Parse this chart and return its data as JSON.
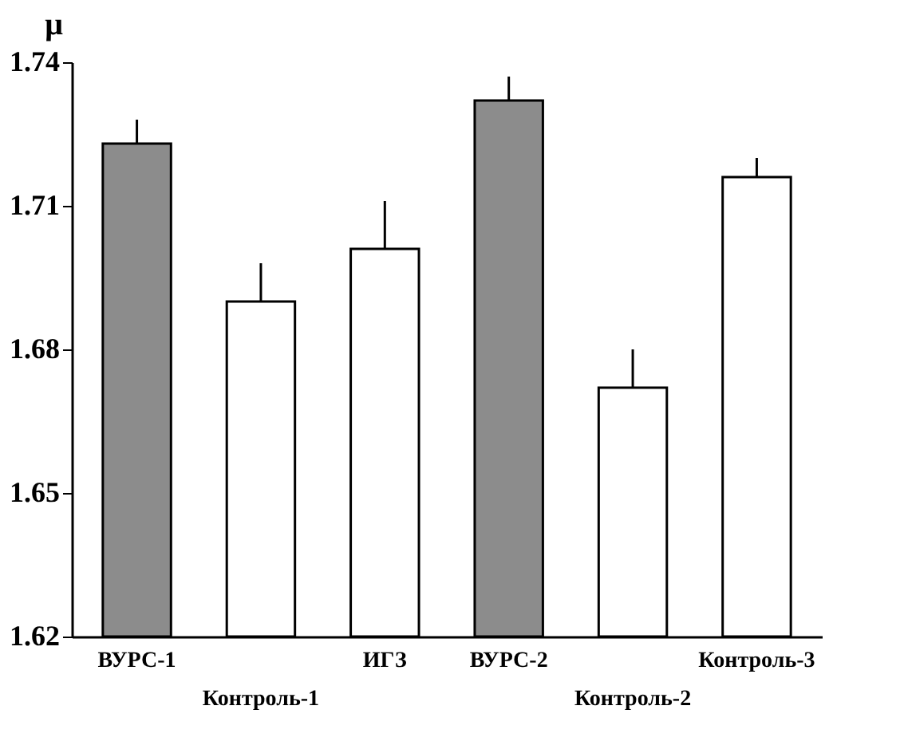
{
  "chart_data": {
    "type": "bar",
    "ylabel": "μ",
    "categories": [
      "ВУРС-1",
      "Контроль-1",
      "ИГЗ",
      "ВУРС-2",
      "Контроль-2",
      "Контроль-3"
    ],
    "values": [
      1.723,
      1.69,
      1.701,
      1.732,
      1.672,
      1.716
    ],
    "colors": [
      "#8c8c8c",
      "#ffffff",
      "#ffffff",
      "#8c8c8c",
      "#ffffff",
      "#ffffff"
    ],
    "errors": [
      [
        1.723,
        1.728
      ],
      [
        1.69,
        1.698
      ],
      [
        1.701,
        1.711
      ],
      [
        1.732,
        1.737
      ],
      [
        1.672,
        1.68
      ],
      [
        1.716,
        1.72
      ]
    ],
    "ylim": [
      1.62,
      1.74
    ],
    "yticks": [
      1.62,
      1.65,
      1.68,
      1.71,
      1.74
    ],
    "grid": false
  }
}
